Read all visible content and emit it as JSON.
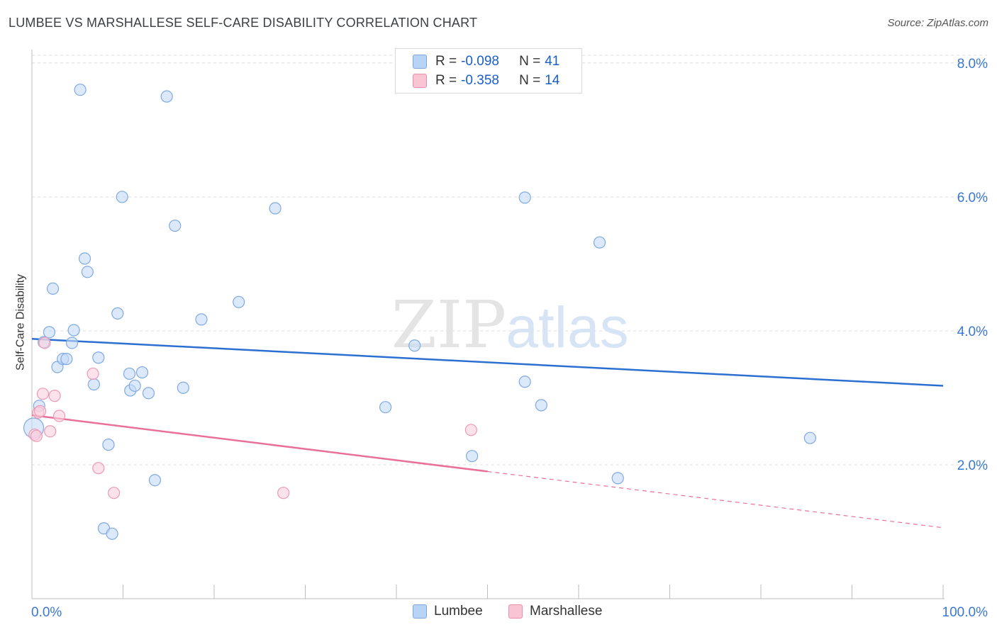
{
  "title": "LUMBEE VS MARSHALLESE SELF-CARE DISABILITY CORRELATION CHART",
  "source": "Source: ZipAtlas.com",
  "watermark": {
    "zip": "ZIP",
    "atlas": "atlas"
  },
  "legend": {
    "r_label": "R = ",
    "n_label": "N = ",
    "rows": [
      {
        "r": "-0.098",
        "n": "41",
        "fill": "#b8d3f5",
        "stroke": "#7aa7e0"
      },
      {
        "r": "-0.358",
        "n": "14",
        "fill": "#f9c5d5",
        "stroke": "#e98fab"
      }
    ]
  },
  "colors": {
    "lumbee_fill": "#c5dbf7",
    "lumbee_stroke": "#7fa9e4",
    "lumbee_line": "#2b6fd1",
    "marsh_fill": "#fad0de",
    "marsh_stroke": "#ec9ab5",
    "marsh_line": "#e8709a",
    "axis_label": "#3a78d4",
    "grid": "#dcdcdc"
  },
  "chart_data": {
    "type": "scatter",
    "title": "LUMBEE VS MARSHALLESE SELF-CARE DISABILITY CORRELATION CHART",
    "xlabel": "",
    "ylabel": "Self-Care Disability",
    "xlim": [
      0,
      100
    ],
    "ylim": [
      0.0,
      8.2
    ],
    "x_tick_labels": [
      "0.0%",
      "100.0%"
    ],
    "y_ticks": [
      2.0,
      4.0,
      6.0,
      8.0
    ],
    "y_tick_labels": [
      "2.0%",
      "4.0%",
      "6.0%",
      "8.0%"
    ],
    "series": [
      {
        "name": "Lumbee",
        "R": -0.098,
        "N": 41,
        "trend": {
          "x": [
            0,
            100
          ],
          "y": [
            3.88,
            3.18
          ],
          "dashed_from": null
        },
        "points": [
          {
            "x": 0.2,
            "y": 2.55
          },
          {
            "x": 0.8,
            "y": 2.88
          },
          {
            "x": 1.3,
            "y": 3.83
          },
          {
            "x": 1.9,
            "y": 3.98
          },
          {
            "x": 2.3,
            "y": 4.63
          },
          {
            "x": 2.8,
            "y": 3.46
          },
          {
            "x": 3.4,
            "y": 3.58
          },
          {
            "x": 3.8,
            "y": 3.58
          },
          {
            "x": 4.4,
            "y": 3.82
          },
          {
            "x": 4.6,
            "y": 4.01
          },
          {
            "x": 5.3,
            "y": 7.6
          },
          {
            "x": 5.8,
            "y": 5.08
          },
          {
            "x": 6.1,
            "y": 4.88
          },
          {
            "x": 6.8,
            "y": 3.2
          },
          {
            "x": 7.3,
            "y": 3.6
          },
          {
            "x": 7.9,
            "y": 1.05
          },
          {
            "x": 8.4,
            "y": 2.3
          },
          {
            "x": 8.8,
            "y": 0.97
          },
          {
            "x": 9.4,
            "y": 4.26
          },
          {
            "x": 9.9,
            "y": 6.0
          },
          {
            "x": 10.7,
            "y": 3.36
          },
          {
            "x": 10.8,
            "y": 3.11
          },
          {
            "x": 11.3,
            "y": 3.18
          },
          {
            "x": 12.1,
            "y": 3.38
          },
          {
            "x": 12.8,
            "y": 3.07
          },
          {
            "x": 13.5,
            "y": 1.77
          },
          {
            "x": 14.8,
            "y": 7.5
          },
          {
            "x": 15.7,
            "y": 5.57
          },
          {
            "x": 16.6,
            "y": 3.15
          },
          {
            "x": 18.6,
            "y": 4.17
          },
          {
            "x": 22.7,
            "y": 4.43
          },
          {
            "x": 26.7,
            "y": 5.83
          },
          {
            "x": 38.8,
            "y": 2.86
          },
          {
            "x": 42.0,
            "y": 3.78
          },
          {
            "x": 48.3,
            "y": 2.13
          },
          {
            "x": 54.1,
            "y": 5.99
          },
          {
            "x": 54.1,
            "y": 3.24
          },
          {
            "x": 55.9,
            "y": 2.89
          },
          {
            "x": 62.3,
            "y": 5.32
          },
          {
            "x": 64.3,
            "y": 1.8
          },
          {
            "x": 85.4,
            "y": 2.4
          }
        ]
      },
      {
        "name": "Marshallese",
        "R": -0.358,
        "N": 14,
        "trend": {
          "x": [
            0,
            100
          ],
          "y": [
            2.74,
            1.06
          ],
          "dashed_from": 50
        },
        "points": [
          {
            "x": 0.3,
            "y": 2.45
          },
          {
            "x": 0.5,
            "y": 2.43
          },
          {
            "x": 0.7,
            "y": 2.78
          },
          {
            "x": 0.9,
            "y": 2.8
          },
          {
            "x": 1.2,
            "y": 3.06
          },
          {
            "x": 1.4,
            "y": 3.82
          },
          {
            "x": 2.0,
            "y": 2.5
          },
          {
            "x": 2.5,
            "y": 3.03
          },
          {
            "x": 3.0,
            "y": 2.73
          },
          {
            "x": 6.7,
            "y": 3.36
          },
          {
            "x": 7.3,
            "y": 1.95
          },
          {
            "x": 9.0,
            "y": 1.58
          },
          {
            "x": 27.6,
            "y": 1.58
          },
          {
            "x": 48.2,
            "y": 2.52
          }
        ]
      }
    ]
  }
}
